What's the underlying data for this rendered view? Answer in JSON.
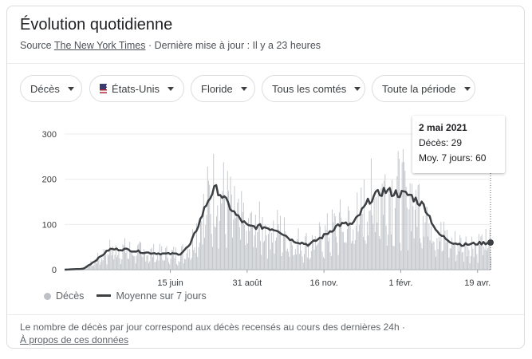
{
  "header": {
    "title": "Évolution quotidienne",
    "source_prefix": "Source",
    "source_link": "The New York Times",
    "update_text": "· Dernière mise à jour : Il y a 23 heures"
  },
  "filters": [
    {
      "label": "Décès"
    },
    {
      "label": "États-Unis",
      "icon": "us-flag-icon"
    },
    {
      "label": "Floride"
    },
    {
      "label": "Tous les comtés"
    },
    {
      "label": "Toute la période"
    }
  ],
  "tooltip": {
    "date": "2 mai 2021",
    "deaths": "Décès: 29",
    "avg": "Moy. 7 jours: 60"
  },
  "legend": {
    "bars": "Décès",
    "line": "Moyenne sur 7 jours"
  },
  "footnote": {
    "text": "Le nombre de décès par jour correspond aux décès recensés au cours des dernières 24h ·",
    "link": "À propos de ces données"
  },
  "colors": {
    "bars": "#bdc1c6",
    "line": "#3c4043"
  },
  "chart_data": {
    "type": "bar",
    "overlay": "line",
    "ylim": [
      0,
      300
    ],
    "yticks": [
      0,
      100,
      200,
      300
    ],
    "xticks": [
      "15 juin",
      "31 août",
      "16 nov.",
      "1 févr.",
      "19 avr."
    ],
    "x_range": [
      "2020-03-01",
      "2021-05-02"
    ],
    "series": [
      {
        "name": "Moyenne sur 7 jours",
        "type": "line",
        "dates": [
          "2020-03-01",
          "2020-03-20",
          "2020-04-01",
          "2020-04-15",
          "2020-05-01",
          "2020-05-20",
          "2020-06-10",
          "2020-06-25",
          "2020-07-05",
          "2020-07-15",
          "2020-07-22",
          "2020-07-28",
          "2020-08-01",
          "2020-08-10",
          "2020-08-20",
          "2020-09-01",
          "2020-09-15",
          "2020-10-01",
          "2020-10-15",
          "2020-11-01",
          "2020-11-16",
          "2020-12-01",
          "2020-12-15",
          "2021-01-01",
          "2021-01-15",
          "2021-01-25",
          "2021-02-10",
          "2021-02-25",
          "2021-03-10",
          "2021-03-25",
          "2021-04-05",
          "2021-04-19",
          "2021-05-02"
        ],
        "values": [
          0,
          2,
          20,
          45,
          45,
          38,
          35,
          35,
          55,
          110,
          150,
          175,
          178,
          150,
          120,
          95,
          95,
          88,
          65,
          55,
          75,
          100,
          100,
          155,
          175,
          170,
          165,
          140,
          80,
          60,
          55,
          58,
          60
        ]
      },
      {
        "name": "Décès",
        "type": "bar",
        "dates": [
          "2021-05-02"
        ],
        "values": [
          29
        ]
      }
    ]
  }
}
